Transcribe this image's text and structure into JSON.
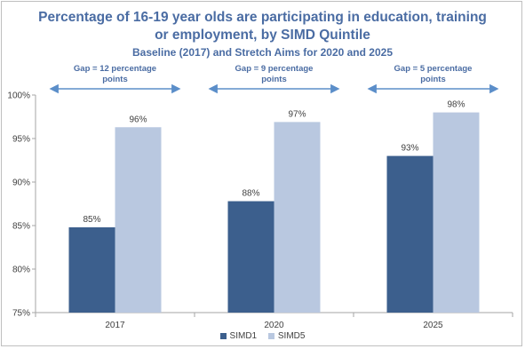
{
  "chart_data": {
    "type": "bar",
    "title_lines": [
      "Percentage of 16-19 year olds are participating in education, training",
      "or employment, by SIMD Quintile"
    ],
    "subtitle": "Baseline (2017) and Stretch Aims for 2020 and 2025",
    "categories": [
      "2017",
      "2020",
      "2025"
    ],
    "series": [
      {
        "name": "SIMD1",
        "values": [
          84.8,
          87.8,
          93.0
        ],
        "labels": [
          "85%",
          "88%",
          "93%"
        ],
        "color": "#3c5f8d"
      },
      {
        "name": "SIMD5",
        "values": [
          96.3,
          96.9,
          98.0
        ],
        "labels": [
          "96%",
          "97%",
          "98%"
        ],
        "color": "#b9c8e0"
      }
    ],
    "ylim": [
      75,
      100
    ],
    "yticks": [
      75,
      80,
      85,
      90,
      95,
      100
    ],
    "ytick_labels": [
      "75%",
      "80%",
      "85%",
      "90%",
      "95%",
      "100%"
    ],
    "annotations": [
      {
        "line1": "Gap = 12 percentage",
        "line2": "points"
      },
      {
        "line1": "Gap = 9 percentage",
        "line2": "points"
      },
      {
        "line1": "Gap = 5 percentage",
        "line2": "points"
      }
    ],
    "arrow_color": "#5b8ec9",
    "legend_position": "bottom",
    "grid": false
  }
}
